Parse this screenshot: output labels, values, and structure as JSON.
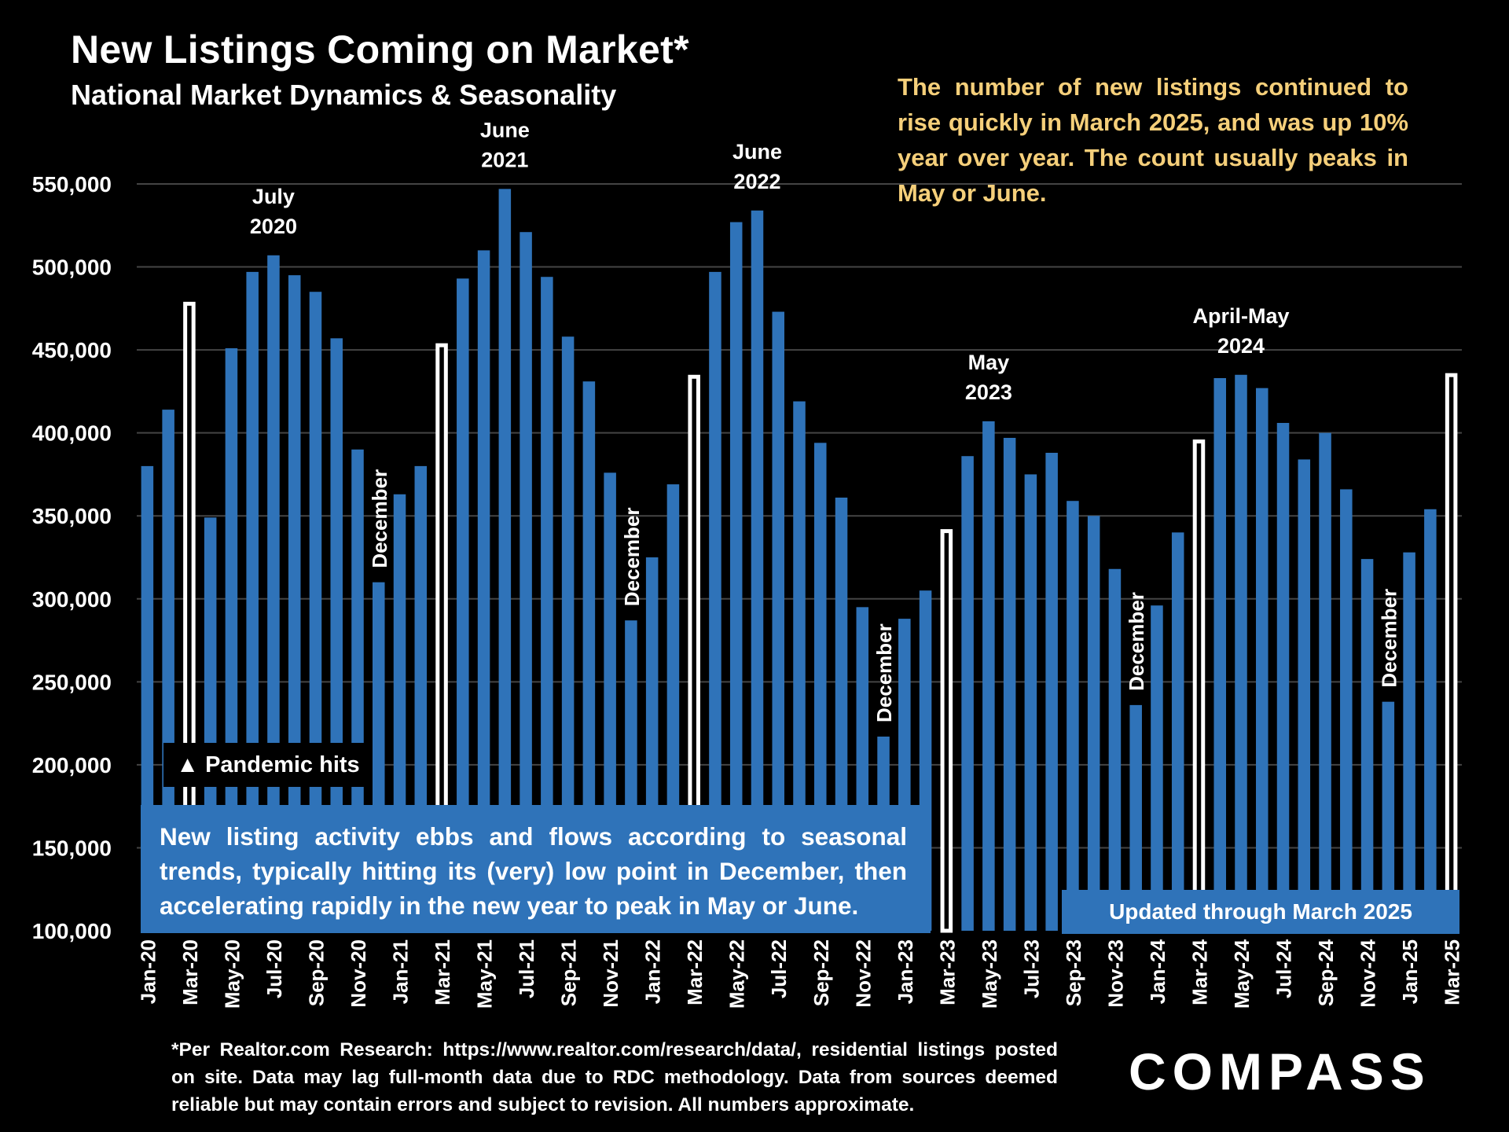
{
  "title": "New Listings Coming on Market*",
  "subtitle": "National Market Dynamics & Seasonality",
  "commentary": "The number of new listings continued to rise quickly in March 2025, and was up 10% year over year. The count usually peaks in May or June.",
  "note": "New listing activity ebbs and flows according to seasonal trends, typically hitting its (very) low point in December, then accelerating rapidly in the new year to peak in May or June.",
  "pandemic_label": "Pandemic hits",
  "pandemic_glyph": "▲",
  "updated_label": "Updated through March 2025",
  "footnote": "*Per Realtor.com Research: https://www.realtor.com/research/data/, residential listings posted on site. Data may lag full-month data due to RDC methodology. Data from sources deemed reliable but may contain errors and subject to revision. All numbers approximate.",
  "logo_text": "COMPASS",
  "colors": {
    "background": "#000000",
    "bar": "#2f73b9",
    "march_bar": "#ffffff",
    "commentary": "#f5cf7a",
    "grid": "#444444"
  },
  "chart_data": {
    "type": "bar",
    "ylim": [
      100000,
      550000
    ],
    "yticks": [
      100000,
      150000,
      200000,
      250000,
      300000,
      350000,
      400000,
      450000,
      500000,
      550000
    ],
    "ytick_labels": [
      "100,000",
      "150,000",
      "200,000",
      "250,000",
      "300,000",
      "350,000",
      "400,000",
      "450,000",
      "500,000",
      "550,000"
    ],
    "grid": true,
    "categories": [
      "Jan-20",
      "Feb-20",
      "Mar-20",
      "Apr-20",
      "May-20",
      "Jun-20",
      "Jul-20",
      "Aug-20",
      "Sep-20",
      "Oct-20",
      "Nov-20",
      "Dec-20",
      "Jan-21",
      "Feb-21",
      "Mar-21",
      "Apr-21",
      "May-21",
      "Jun-21",
      "Jul-21",
      "Aug-21",
      "Sep-21",
      "Oct-21",
      "Nov-21",
      "Dec-21",
      "Jan-22",
      "Feb-22",
      "Mar-22",
      "Apr-22",
      "May-22",
      "Jun-22",
      "Jul-22",
      "Aug-22",
      "Sep-22",
      "Oct-22",
      "Nov-22",
      "Dec-22",
      "Jan-23",
      "Feb-23",
      "Mar-23",
      "Apr-23",
      "May-23",
      "Jun-23",
      "Jul-23",
      "Aug-23",
      "Sep-23",
      "Oct-23",
      "Nov-23",
      "Dec-23",
      "Jan-24",
      "Feb-24",
      "Mar-24",
      "Apr-24",
      "May-24",
      "Jun-24",
      "Jul-24",
      "Aug-24",
      "Sep-24",
      "Oct-24",
      "Nov-24",
      "Dec-24",
      "Jan-25",
      "Feb-25",
      "Mar-25"
    ],
    "tick_labels": [
      "Jan-20",
      "",
      "Mar-20",
      "",
      "May-20",
      "",
      "Jul-20",
      "",
      "Sep-20",
      "",
      "Nov-20",
      "",
      "Jan-21",
      "",
      "Mar-21",
      "",
      "May-21",
      "",
      "Jul-21",
      "",
      "Sep-21",
      "",
      "Nov-21",
      "",
      "Jan-22",
      "",
      "Mar-22",
      "",
      "May-22",
      "",
      "Jul-22",
      "",
      "Sep-22",
      "",
      "Nov-22",
      "",
      "Jan-23",
      "",
      "Mar-23",
      "",
      "May-23",
      "",
      "Jul-23",
      "",
      "Sep-23",
      "",
      "Nov-23",
      "",
      "Jan-24",
      "",
      "Mar-24",
      "",
      "May-24",
      "",
      "Jul-24",
      "",
      "Sep-24",
      "",
      "Nov-24",
      "",
      "Jan-25",
      "",
      "Mar-25"
    ],
    "values": [
      380000,
      414000,
      479000,
      349000,
      451000,
      497000,
      507000,
      495000,
      485000,
      457000,
      390000,
      310000,
      363000,
      380000,
      454000,
      493000,
      510000,
      547000,
      521000,
      494000,
      458000,
      431000,
      376000,
      287000,
      325000,
      369000,
      435000,
      497000,
      527000,
      534000,
      473000,
      419000,
      394000,
      361000,
      295000,
      217000,
      288000,
      305000,
      342000,
      386000,
      407000,
      397000,
      375000,
      388000,
      359000,
      350000,
      318000,
      236000,
      296000,
      340000,
      396000,
      433000,
      435000,
      427000,
      406000,
      384000,
      400000,
      366000,
      324000,
      238000,
      328000,
      354000,
      436000
    ],
    "highlighted": [
      "Mar-20",
      "Mar-21",
      "Mar-22",
      "Mar-23",
      "Mar-24",
      "Mar-25"
    ],
    "annotations": [
      {
        "text": [
          "July",
          "2020"
        ],
        "at": "Jul-20"
      },
      {
        "text": [
          "June",
          "2021"
        ],
        "at": "Jun-21"
      },
      {
        "text": [
          "June",
          "2022"
        ],
        "at": "Jun-22"
      },
      {
        "text": [
          "May",
          "2023"
        ],
        "at": "May-23"
      },
      {
        "text": [
          "April-May",
          "2024"
        ],
        "at": "May-24"
      }
    ],
    "december_labels": [
      {
        "text": "December",
        "at": "Dec-20"
      },
      {
        "text": "December",
        "at": "Dec-21"
      },
      {
        "text": "December",
        "at": "Dec-22"
      },
      {
        "text": "December",
        "at": "Dec-23"
      },
      {
        "text": "December",
        "at": "Dec-24"
      }
    ]
  }
}
